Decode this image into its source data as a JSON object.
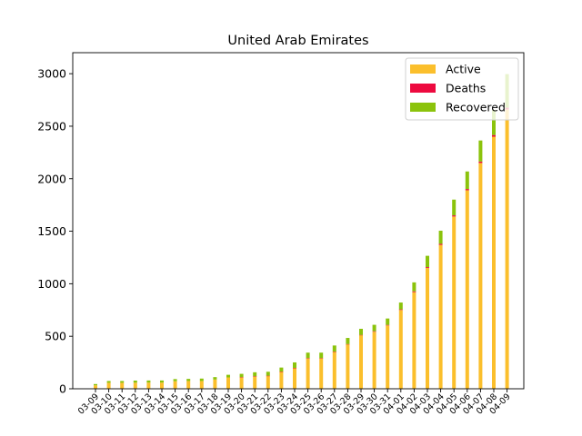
{
  "chart_data": {
    "type": "bar",
    "stacked": true,
    "title": "United Arab Emirates",
    "xlabel": "",
    "ylabel": "",
    "ylim": [
      0,
      3200
    ],
    "yticks": [
      0,
      500,
      1000,
      1500,
      2000,
      2500,
      3000
    ],
    "grid": false,
    "legend_position": "top-right",
    "categories": [
      "03-09",
      "03-10",
      "03-11",
      "03-12",
      "03-13",
      "03-14",
      "03-15",
      "03-16",
      "03-17",
      "03-18",
      "03-19",
      "03-20",
      "03-21",
      "03-22",
      "03-23",
      "03-24",
      "03-25",
      "03-26",
      "03-27",
      "03-28",
      "03-29",
      "03-30",
      "03-31",
      "04-01",
      "04-02",
      "04-03",
      "04-04",
      "04-05",
      "04-06",
      "04-07",
      "04-08",
      "04-09"
    ],
    "series": [
      {
        "name": "Active",
        "color": "#fbbf2c",
        "values": [
          33,
          57,
          57,
          58,
          59,
          59,
          72,
          74,
          74,
          88,
          108,
          109,
          117,
          122,
          162,
          197,
          290,
          290,
          352,
          424,
          510,
          543,
          603,
          750,
          920,
          1150,
          1370,
          1640,
          1890,
          2150,
          2400,
          2660
        ]
      },
      {
        "name": "Deaths",
        "color": "#ed0a3f",
        "values": [
          0,
          0,
          0,
          0,
          0,
          0,
          0,
          0,
          0,
          0,
          0,
          2,
          2,
          2,
          2,
          2,
          2,
          2,
          2,
          2,
          3,
          5,
          5,
          6,
          8,
          8,
          10,
          11,
          12,
          14,
          16,
          16
        ]
      },
      {
        "name": "Recovered",
        "color": "#8bc30c",
        "values": [
          12,
          17,
          17,
          20,
          20,
          20,
          20,
          20,
          23,
          23,
          25,
          31,
          38,
          38,
          38,
          52,
          52,
          52,
          58,
          58,
          58,
          61,
          61,
          65,
          85,
          108,
          125,
          150,
          167,
          200,
          240,
          320
        ]
      }
    ]
  }
}
